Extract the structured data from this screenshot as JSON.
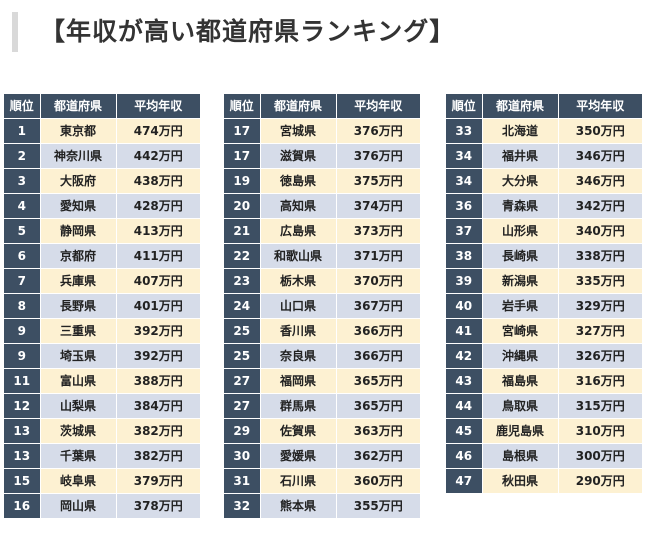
{
  "title": "【年収が高い都道府県ランキング】",
  "headers": {
    "rank": "順位",
    "prefecture": "都道府県",
    "income": "平均年収"
  },
  "tables": [
    [
      {
        "rank": "1",
        "prefecture": "東京都",
        "income": "474万円"
      },
      {
        "rank": "2",
        "prefecture": "神奈川県",
        "income": "442万円"
      },
      {
        "rank": "3",
        "prefecture": "大阪府",
        "income": "438万円"
      },
      {
        "rank": "4",
        "prefecture": "愛知県",
        "income": "428万円"
      },
      {
        "rank": "5",
        "prefecture": "静岡県",
        "income": "413万円"
      },
      {
        "rank": "6",
        "prefecture": "京都府",
        "income": "411万円"
      },
      {
        "rank": "7",
        "prefecture": "兵庫県",
        "income": "407万円"
      },
      {
        "rank": "8",
        "prefecture": "長野県",
        "income": "401万円"
      },
      {
        "rank": "9",
        "prefecture": "三重県",
        "income": "392万円"
      },
      {
        "rank": "9",
        "prefecture": "埼玉県",
        "income": "392万円"
      },
      {
        "rank": "11",
        "prefecture": "富山県",
        "income": "388万円"
      },
      {
        "rank": "12",
        "prefecture": "山梨県",
        "income": "384万円"
      },
      {
        "rank": "13",
        "prefecture": "茨城県",
        "income": "382万円"
      },
      {
        "rank": "13",
        "prefecture": "千葉県",
        "income": "382万円"
      },
      {
        "rank": "15",
        "prefecture": "岐阜県",
        "income": "379万円"
      },
      {
        "rank": "16",
        "prefecture": "岡山県",
        "income": "378万円"
      }
    ],
    [
      {
        "rank": "17",
        "prefecture": "宮城県",
        "income": "376万円"
      },
      {
        "rank": "17",
        "prefecture": "滋賀県",
        "income": "376万円"
      },
      {
        "rank": "19",
        "prefecture": "徳島県",
        "income": "375万円"
      },
      {
        "rank": "20",
        "prefecture": "高知県",
        "income": "374万円"
      },
      {
        "rank": "21",
        "prefecture": "広島県",
        "income": "373万円"
      },
      {
        "rank": "22",
        "prefecture": "和歌山県",
        "income": "371万円"
      },
      {
        "rank": "23",
        "prefecture": "栃木県",
        "income": "370万円"
      },
      {
        "rank": "24",
        "prefecture": "山口県",
        "income": "367万円"
      },
      {
        "rank": "25",
        "prefecture": "香川県",
        "income": "366万円"
      },
      {
        "rank": "25",
        "prefecture": "奈良県",
        "income": "366万円"
      },
      {
        "rank": "27",
        "prefecture": "福岡県",
        "income": "365万円"
      },
      {
        "rank": "27",
        "prefecture": "群馬県",
        "income": "365万円"
      },
      {
        "rank": "29",
        "prefecture": "佐賀県",
        "income": "363万円"
      },
      {
        "rank": "30",
        "prefecture": "愛媛県",
        "income": "362万円"
      },
      {
        "rank": "31",
        "prefecture": "石川県",
        "income": "360万円"
      },
      {
        "rank": "32",
        "prefecture": "熊本県",
        "income": "355万円"
      }
    ],
    [
      {
        "rank": "33",
        "prefecture": "北海道",
        "income": "350万円"
      },
      {
        "rank": "34",
        "prefecture": "福井県",
        "income": "346万円"
      },
      {
        "rank": "34",
        "prefecture": "大分県",
        "income": "346万円"
      },
      {
        "rank": "36",
        "prefecture": "青森県",
        "income": "342万円"
      },
      {
        "rank": "37",
        "prefecture": "山形県",
        "income": "340万円"
      },
      {
        "rank": "38",
        "prefecture": "長崎県",
        "income": "338万円"
      },
      {
        "rank": "39",
        "prefecture": "新潟県",
        "income": "335万円"
      },
      {
        "rank": "40",
        "prefecture": "岩手県",
        "income": "329万円"
      },
      {
        "rank": "41",
        "prefecture": "宮崎県",
        "income": "327万円"
      },
      {
        "rank": "42",
        "prefecture": "沖縄県",
        "income": "326万円"
      },
      {
        "rank": "43",
        "prefecture": "福島県",
        "income": "316万円"
      },
      {
        "rank": "44",
        "prefecture": "鳥取県",
        "income": "315万円"
      },
      {
        "rank": "45",
        "prefecture": "鹿児島県",
        "income": "310万円"
      },
      {
        "rank": "46",
        "prefecture": "島根県",
        "income": "300万円"
      },
      {
        "rank": "47",
        "prefecture": "秋田県",
        "income": "290万円"
      }
    ]
  ],
  "colors": {
    "header_bg": "#3d4f63",
    "row_odd": "#fdf1d2",
    "row_even": "#d6dce9",
    "title_text": "#333333"
  }
}
